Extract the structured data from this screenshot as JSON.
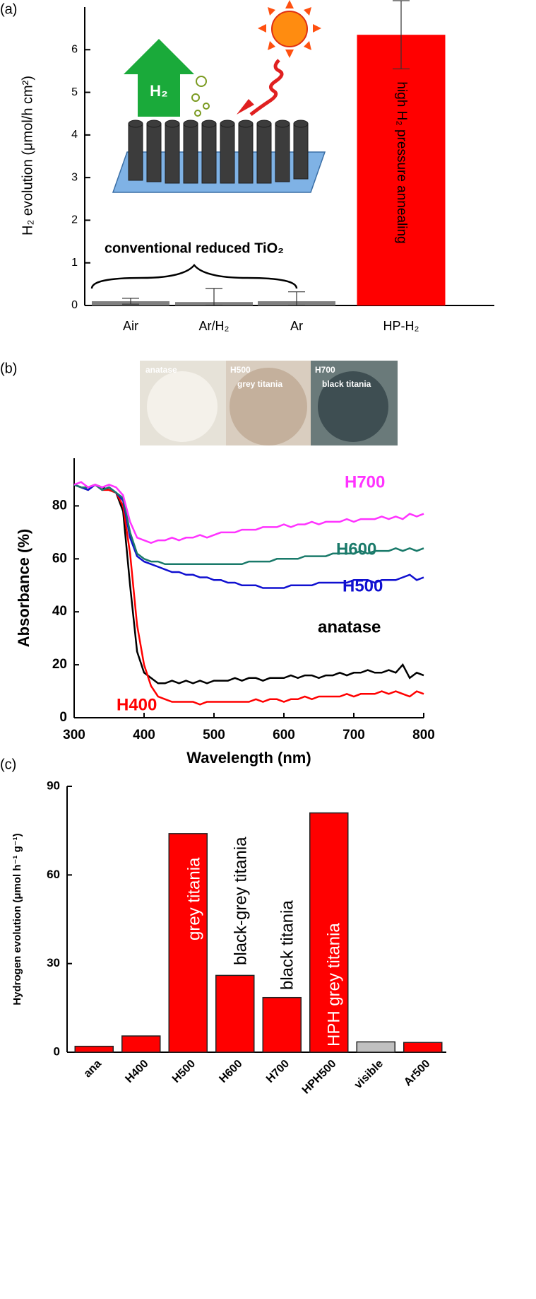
{
  "chart_data": [
    {
      "type": "bar",
      "panel_label": "(a)",
      "ylabel": "H₂ evolution (μmol/h cm²)",
      "categories": [
        "Air",
        "Ar/H₂",
        "Ar",
        "HP-H₂"
      ],
      "values": [
        0.1,
        0.08,
        0.1,
        6.35
      ],
      "errors": [
        0.07,
        0.32,
        0.22,
        0.8
      ],
      "colors": [
        "#808080",
        "#808080",
        "#808080",
        "#ff0000"
      ],
      "ylim": [
        0,
        7
      ],
      "yticks": [
        0,
        1,
        2,
        3,
        4,
        5,
        6
      ],
      "annotations": [
        "H₂",
        "conventional reduced TiO₂",
        "high H₂ pressure annealing"
      ]
    },
    {
      "type": "line",
      "panel_label": "(b)",
      "xlabel": "Wavelength (nm)",
      "ylabel": "Absorbance (%)",
      "image_labels": [
        "anatase",
        "H500",
        "grey titania",
        "H700",
        "black titania"
      ],
      "xlim": [
        300,
        800
      ],
      "xticks": [
        300,
        400,
        500,
        600,
        700,
        800
      ],
      "ylim": [
        0,
        98
      ],
      "yticks": [
        0,
        20,
        40,
        60,
        80
      ],
      "x": [
        300,
        310,
        320,
        330,
        340,
        350,
        360,
        370,
        380,
        390,
        400,
        410,
        420,
        430,
        440,
        450,
        460,
        470,
        480,
        490,
        500,
        510,
        520,
        530,
        540,
        550,
        560,
        570,
        580,
        590,
        600,
        610,
        620,
        630,
        640,
        650,
        660,
        670,
        680,
        690,
        700,
        710,
        720,
        730,
        740,
        750,
        760,
        770,
        780,
        790,
        800
      ],
      "series": [
        {
          "name": "anatase",
          "color": "#000000",
          "values": [
            88,
            87,
            86,
            88,
            87,
            86,
            85,
            78,
            50,
            25,
            17,
            15,
            13,
            13,
            14,
            13,
            14,
            13,
            14,
            13,
            14,
            14,
            14,
            15,
            14,
            15,
            15,
            14,
            15,
            15,
            15,
            16,
            15,
            16,
            16,
            15,
            16,
            16,
            17,
            16,
            17,
            17,
            18,
            17,
            17,
            18,
            17,
            20,
            15,
            17,
            16
          ]
        },
        {
          "name": "H400",
          "color": "#ff0000",
          "values": [
            88,
            87,
            87,
            88,
            86,
            86,
            85,
            80,
            62,
            35,
            20,
            12,
            8,
            7,
            6,
            6,
            6,
            6,
            5,
            6,
            6,
            6,
            6,
            6,
            6,
            6,
            7,
            6,
            7,
            7,
            6,
            7,
            7,
            8,
            7,
            8,
            8,
            8,
            8,
            9,
            8,
            9,
            9,
            9,
            10,
            9,
            10,
            9,
            8,
            10,
            9
          ]
        },
        {
          "name": "H500",
          "color": "#1010d0",
          "values": [
            88,
            87,
            86,
            88,
            86,
            87,
            85,
            82,
            68,
            61,
            59,
            58,
            57,
            56,
            55,
            55,
            54,
            54,
            53,
            53,
            52,
            52,
            51,
            51,
            50,
            50,
            50,
            49,
            49,
            49,
            49,
            50,
            50,
            50,
            50,
            51,
            51,
            51,
            51,
            51,
            52,
            52,
            52,
            51,
            52,
            52,
            52,
            53,
            54,
            52,
            53
          ]
        },
        {
          "name": "H600",
          "color": "#1a7a6a",
          "values": [
            88,
            87,
            87,
            88,
            86,
            87,
            85,
            83,
            70,
            62,
            60,
            59,
            59,
            58,
            58,
            58,
            58,
            58,
            58,
            58,
            58,
            58,
            58,
            58,
            58,
            59,
            59,
            59,
            59,
            60,
            60,
            60,
            60,
            61,
            61,
            61,
            61,
            62,
            62,
            62,
            62,
            63,
            62,
            63,
            63,
            63,
            64,
            63,
            64,
            63,
            64
          ]
        },
        {
          "name": "H700",
          "color": "#ff33ff",
          "values": [
            88,
            89,
            87,
            88,
            87,
            88,
            87,
            84,
            74,
            68,
            67,
            66,
            67,
            67,
            68,
            67,
            68,
            68,
            69,
            68,
            69,
            70,
            70,
            70,
            71,
            71,
            71,
            72,
            72,
            72,
            73,
            72,
            73,
            73,
            74,
            73,
            74,
            74,
            74,
            75,
            74,
            75,
            75,
            75,
            76,
            75,
            76,
            75,
            77,
            76,
            77
          ]
        }
      ]
    },
    {
      "type": "bar",
      "panel_label": "(c)",
      "ylabel": "Hydrogen evolution (μmol h⁻¹ g⁻¹)",
      "categories": [
        "ana",
        "H400",
        "H500",
        "H600",
        "H700",
        "HPH500",
        "visible",
        "Ar500"
      ],
      "values": [
        2,
        5.5,
        74,
        26,
        18.5,
        81,
        3.5,
        3.3
      ],
      "colors": [
        "#ff0000",
        "#ff0000",
        "#ff0000",
        "#ff0000",
        "#ff0000",
        "#ff0000",
        "#c0c0c0",
        "#ff0000"
      ],
      "ylim": [
        0,
        90
      ],
      "yticks": [
        0,
        30,
        60,
        90
      ],
      "annotations": [
        "grey titania",
        "black-grey titania",
        "black titania",
        "HPH grey titania"
      ]
    }
  ]
}
